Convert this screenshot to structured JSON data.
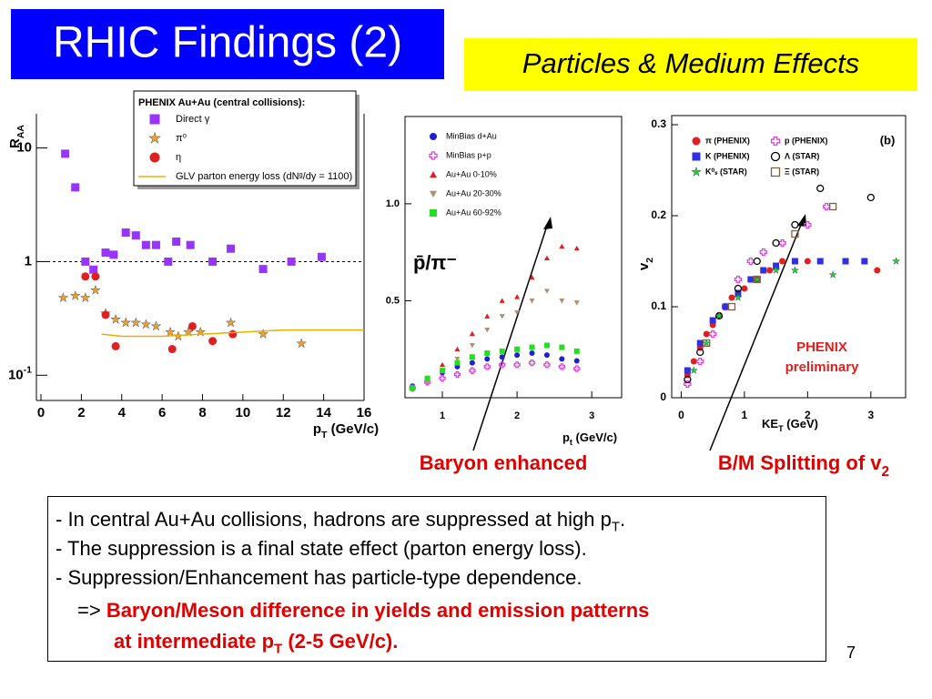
{
  "title": "RHIC Findings (2)",
  "subtitle": "Particles & Medium Effects",
  "chart_data": [
    {
      "type": "scatter",
      "log_y": true,
      "ylabel": {
        "text": "R",
        "sub": "AA"
      },
      "xlabel": {
        "text": "p",
        "sub": "T",
        "post": " (GeV/c)"
      },
      "xlim": [
        0,
        16
      ],
      "xticks": [
        0,
        2,
        4,
        6,
        8,
        10,
        12,
        14,
        16
      ],
      "ylim": [
        0.06,
        20
      ],
      "yticks": [
        {
          "value": 0.1,
          "label": "10",
          "sup": "-1"
        },
        1,
        10
      ],
      "legend_title": "PHENIX Au+Au (central collisions):",
      "series": [
        {
          "name": "Direct γ",
          "color": "#9933ff",
          "marker": "square",
          "x": [
            1.2,
            1.7,
            2.2,
            2.6,
            3.2,
            3.6,
            4.2,
            4.7,
            5.2,
            5.7,
            6.3,
            6.7,
            7.4,
            8.5,
            9.4,
            11,
            12.4,
            13.9
          ],
          "values": [
            8.9,
            4.5,
            1.0,
            0.85,
            1.2,
            1.15,
            1.8,
            1.7,
            1.4,
            1.4,
            1.0,
            1.5,
            1.4,
            1.0,
            1.3,
            0.86,
            1.0,
            1.1
          ]
        },
        {
          "name": "π⁰",
          "color": "#f0a030",
          "marker": "star",
          "x": [
            1.1,
            1.7,
            2.2,
            2.7,
            3.2,
            3.7,
            4.2,
            4.7,
            5.2,
            5.7,
            6.4,
            6.8,
            7.3,
            7.9,
            9.4,
            11,
            12.9
          ],
          "values": [
            0.48,
            0.5,
            0.48,
            0.56,
            0.35,
            0.31,
            0.29,
            0.29,
            0.28,
            0.27,
            0.24,
            0.22,
            0.24,
            0.24,
            0.29,
            0.23,
            0.19
          ]
        },
        {
          "name": "η",
          "color": "#e02020",
          "marker": "circle",
          "x": [
            2.2,
            2.7,
            3.2,
            3.7,
            6.5,
            7.5,
            8.5,
            9.5
          ],
          "values": [
            0.74,
            0.74,
            0.34,
            0.18,
            0.17,
            0.27,
            0.2,
            0.23
          ]
        },
        {
          "name": "GLV parton energy loss (dNᵍ/dy = 1100)",
          "color": "#e8b000",
          "style": "line",
          "x": [
            3,
            4,
            6,
            8,
            10,
            12,
            14,
            16
          ],
          "values": [
            0.23,
            0.22,
            0.22,
            0.23,
            0.24,
            0.25,
            0.25,
            0.25
          ]
        }
      ]
    },
    {
      "type": "scatter",
      "ylabel": "p̄/π⁻",
      "xlabel": {
        "text": "p",
        "sub": "t",
        "post": " (GeV/c)"
      },
      "xlim": [
        0.5,
        3.4
      ],
      "xticks": [
        1,
        2,
        3
      ],
      "ylim": [
        0,
        1.45
      ],
      "yticks": [
        0.5,
        {
          "value": 1,
          "label": "1.0"
        }
      ],
      "series": [
        {
          "name": "MinBias d+Au",
          "color": "#2020d0",
          "marker": "circle",
          "x": [
            0.6,
            0.8,
            1.0,
            1.2,
            1.4,
            1.6,
            1.8,
            2.0,
            2.2,
            2.4,
            2.6,
            2.8
          ],
          "values": [
            0.06,
            0.1,
            0.13,
            0.16,
            0.18,
            0.2,
            0.21,
            0.22,
            0.23,
            0.22,
            0.2,
            0.19
          ]
        },
        {
          "name": "MinBias p+p",
          "color": "#e040e0",
          "marker": "cross-open",
          "x": [
            0.6,
            0.8,
            1.0,
            1.2,
            1.4,
            1.6,
            1.8,
            2.0,
            2.2,
            2.4,
            2.6,
            2.8
          ],
          "values": [
            0.05,
            0.08,
            0.1,
            0.12,
            0.14,
            0.16,
            0.17,
            0.17,
            0.18,
            0.17,
            0.16,
            0.15
          ]
        },
        {
          "name": "Au+Au  0-10%",
          "color": "#e02020",
          "marker": "triangle",
          "x": [
            0.6,
            0.8,
            1.0,
            1.2,
            1.4,
            1.6,
            1.8,
            2.0,
            2.2,
            2.4,
            2.6,
            2.8
          ],
          "values": [
            0.05,
            0.1,
            0.17,
            0.25,
            0.33,
            0.42,
            0.5,
            0.52,
            0.62,
            0.72,
            0.78,
            0.77
          ]
        },
        {
          "name": "Au+Au 20-30%",
          "color": "#b09070",
          "marker": "triangle-down",
          "x": [
            0.6,
            0.8,
            1.0,
            1.2,
            1.4,
            1.6,
            1.8,
            2.0,
            2.2,
            2.4,
            2.6,
            2.8
          ],
          "values": [
            0.04,
            0.08,
            0.14,
            0.2,
            0.27,
            0.35,
            0.42,
            0.44,
            0.5,
            0.55,
            0.5,
            0.49
          ]
        },
        {
          "name": "Au+Au 60-92%",
          "color": "#20e020",
          "marker": "square",
          "x": [
            0.6,
            0.8,
            1.0,
            1.2,
            1.4,
            1.6,
            1.8,
            2.0,
            2.2,
            2.4,
            2.6,
            2.8
          ],
          "values": [
            0.05,
            0.1,
            0.14,
            0.18,
            0.21,
            0.23,
            0.24,
            0.25,
            0.26,
            0.27,
            0.26,
            0.24
          ]
        }
      ]
    },
    {
      "type": "scatter",
      "ylabel": {
        "text": "v",
        "sub": "2"
      },
      "xlabel": {
        "text": "KE",
        "sub": "T",
        "post": " (GeV)"
      },
      "xlim": [
        -0.15,
        3.55
      ],
      "xticks": [
        0,
        1,
        2,
        3
      ],
      "ylim": [
        0,
        0.31
      ],
      "yticks": [
        0,
        0.1,
        0.2,
        0.3
      ],
      "panel_label": "(b)",
      "note": [
        "PHENIX",
        "preliminary"
      ],
      "series": [
        {
          "name": "π (PHENIX)",
          "color": "#e02020",
          "marker": "circle",
          "x": [
            0.1,
            0.2,
            0.3,
            0.4,
            0.5,
            0.6,
            0.7,
            0.8,
            1.0,
            1.2,
            1.4,
            1.6,
            2.0,
            2.6,
            3.1
          ],
          "values": [
            0.025,
            0.04,
            0.055,
            0.07,
            0.08,
            0.09,
            0.1,
            0.11,
            0.12,
            0.13,
            0.14,
            0.15,
            0.15,
            0.15,
            0.14
          ]
        },
        {
          "name": "p (PHENIX)",
          "color": "#e040e0",
          "marker": "cross-open",
          "x": [
            0.1,
            0.3,
            0.5,
            0.7,
            0.9,
            1.1,
            1.3,
            1.6,
            2.0,
            2.3
          ],
          "values": [
            0.015,
            0.04,
            0.07,
            0.1,
            0.13,
            0.15,
            0.16,
            0.17,
            0.19,
            0.21
          ]
        },
        {
          "name": "K (PHENIX)",
          "color": "#3030e0",
          "marker": "square",
          "x": [
            0.1,
            0.3,
            0.5,
            0.7,
            0.9,
            1.1,
            1.3,
            1.5,
            1.8,
            2.2,
            2.6,
            2.9
          ],
          "values": [
            0.03,
            0.06,
            0.085,
            0.1,
            0.115,
            0.13,
            0.14,
            0.145,
            0.15,
            0.15,
            0.15,
            0.15
          ]
        },
        {
          "name": "Λ (STAR)",
          "color": "#000000",
          "marker": "circle-open",
          "x": [
            0.1,
            0.3,
            0.6,
            0.9,
            1.2,
            1.5,
            1.8,
            2.2,
            3.0
          ],
          "values": [
            0.02,
            0.05,
            0.09,
            0.12,
            0.15,
            0.17,
            0.19,
            0.23,
            0.22
          ]
        },
        {
          "name": "K⁰ₛ (STAR)",
          "color": "#20d040",
          "marker": "star",
          "x": [
            0.2,
            0.4,
            0.6,
            0.9,
            1.2,
            1.5,
            1.8,
            2.4,
            3.4
          ],
          "values": [
            0.03,
            0.06,
            0.09,
            0.11,
            0.13,
            0.14,
            0.14,
            0.135,
            0.15
          ]
        },
        {
          "name": "Ξ (STAR)",
          "color": "#806040",
          "marker": "square-open",
          "x": [
            0.4,
            0.8,
            1.2,
            1.8,
            2.4
          ],
          "values": [
            0.06,
            0.1,
            0.13,
            0.18,
            0.21
          ]
        }
      ]
    }
  ],
  "annotations": [
    {
      "text": "Baryon enhanced"
    },
    {
      "text": "B/M Splitting of v",
      "sub": "2"
    }
  ],
  "bullets": [
    {
      "text": "- In central Au+Au collisions, hadrons are suppressed at high p",
      "sub": "T",
      "post": "."
    },
    {
      "text": "- The suppression is a final state effect (parton energy loss)."
    },
    {
      "text": "- Suppression/Enhancement has particle-type dependence."
    },
    {
      "text": "=> ",
      "emph": "Baryon/Meson difference in yields and emission patterns"
    },
    {
      "emph": "at intermediate p",
      "sub": "T",
      "post": " (2-5 GeV/c)."
    }
  ],
  "page_number": "7"
}
